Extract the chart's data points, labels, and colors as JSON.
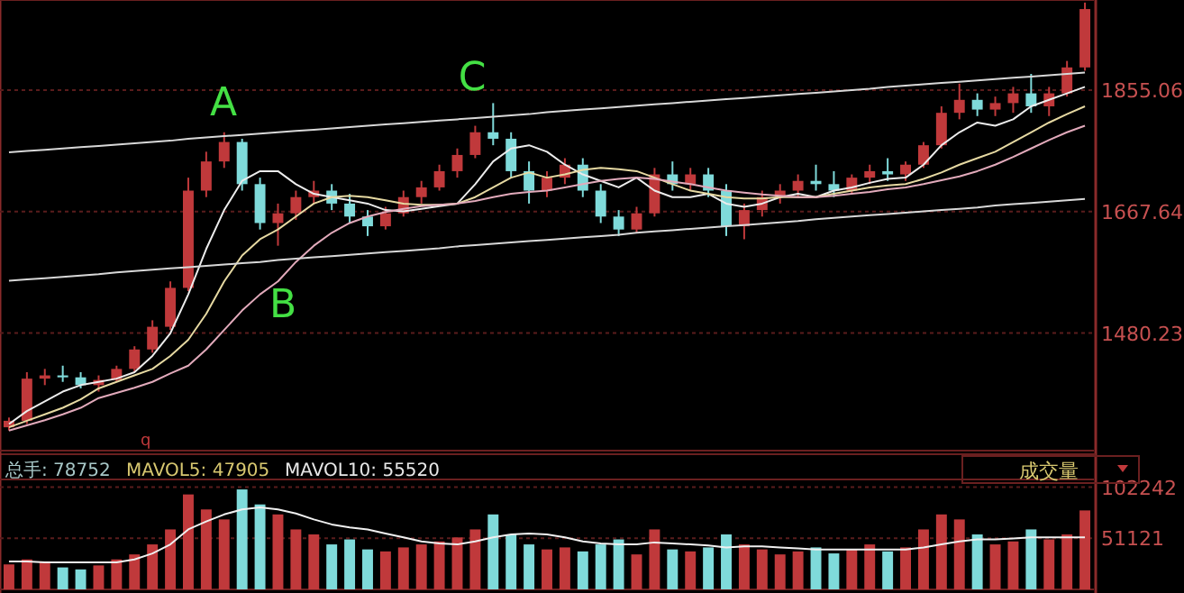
{
  "chart_data": [
    {
      "type": "candlestick",
      "categories": [
        null,
        null,
        null,
        null,
        null,
        null,
        null,
        null,
        null,
        null,
        null,
        null,
        null,
        null,
        null,
        null,
        null,
        null,
        null,
        null,
        null,
        null,
        null,
        null,
        null,
        null,
        null,
        null,
        null,
        null,
        null,
        null,
        null,
        null,
        null,
        null,
        null,
        null,
        null,
        null,
        null,
        null,
        null,
        null,
        null,
        null,
        null,
        null,
        null,
        null,
        null,
        null,
        null,
        null,
        null,
        null,
        null,
        null,
        null,
        null,
        null
      ],
      "ohlc": [
        [
          1335,
          1350,
          1330,
          1345
        ],
        [
          1345,
          1420,
          1340,
          1410
        ],
        [
          1410,
          1425,
          1400,
          1415
        ],
        [
          1415,
          1430,
          1405,
          1412
        ],
        [
          1412,
          1420,
          1395,
          1400
        ],
        [
          1400,
          1415,
          1390,
          1408
        ],
        [
          1408,
          1430,
          1405,
          1425
        ],
        [
          1425,
          1460,
          1420,
          1455
        ],
        [
          1455,
          1500,
          1450,
          1490
        ],
        [
          1490,
          1560,
          1485,
          1550
        ],
        [
          1550,
          1720,
          1545,
          1700
        ],
        [
          1700,
          1760,
          1690,
          1745
        ],
        [
          1745,
          1790,
          1735,
          1775
        ],
        [
          1775,
          1780,
          1700,
          1710
        ],
        [
          1710,
          1720,
          1640,
          1650
        ],
        [
          1650,
          1680,
          1615,
          1665
        ],
        [
          1665,
          1700,
          1655,
          1690
        ],
        [
          1690,
          1715,
          1680,
          1700
        ],
        [
          1700,
          1710,
          1670,
          1680
        ],
        [
          1680,
          1695,
          1650,
          1660
        ],
        [
          1660,
          1670,
          1630,
          1645
        ],
        [
          1645,
          1675,
          1640,
          1665
        ],
        [
          1665,
          1700,
          1660,
          1690
        ],
        [
          1690,
          1715,
          1680,
          1705
        ],
        [
          1705,
          1740,
          1700,
          1730
        ],
        [
          1730,
          1765,
          1720,
          1755
        ],
        [
          1755,
          1800,
          1750,
          1790
        ],
        [
          1790,
          1835,
          1770,
          1780
        ],
        [
          1780,
          1790,
          1720,
          1730
        ],
        [
          1730,
          1745,
          1680,
          1700
        ],
        [
          1700,
          1730,
          1690,
          1720
        ],
        [
          1720,
          1750,
          1710,
          1740
        ],
        [
          1740,
          1750,
          1690,
          1700
        ],
        [
          1700,
          1710,
          1650,
          1660
        ],
        [
          1660,
          1670,
          1630,
          1640
        ],
        [
          1640,
          1675,
          1635,
          1665
        ],
        [
          1665,
          1735,
          1660,
          1725
        ],
        [
          1725,
          1745,
          1700,
          1710
        ],
        [
          1710,
          1735,
          1700,
          1725
        ],
        [
          1725,
          1735,
          1690,
          1700
        ],
        [
          1700,
          1710,
          1630,
          1645
        ],
        [
          1645,
          1680,
          1625,
          1670
        ],
        [
          1670,
          1700,
          1660,
          1690
        ],
        [
          1690,
          1710,
          1680,
          1700
        ],
        [
          1700,
          1725,
          1690,
          1715
        ],
        [
          1715,
          1740,
          1700,
          1710
        ],
        [
          1710,
          1730,
          1690,
          1700
        ],
        [
          1700,
          1725,
          1695,
          1720
        ],
        [
          1720,
          1740,
          1710,
          1730
        ],
        [
          1730,
          1750,
          1715,
          1725
        ],
        [
          1725,
          1745,
          1715,
          1740
        ],
        [
          1740,
          1775,
          1735,
          1770
        ],
        [
          1770,
          1830,
          1765,
          1820
        ],
        [
          1820,
          1865,
          1810,
          1840
        ],
        [
          1840,
          1850,
          1815,
          1825
        ],
        [
          1825,
          1845,
          1815,
          1835
        ],
        [
          1835,
          1860,
          1820,
          1850
        ],
        [
          1850,
          1880,
          1820,
          1830
        ],
        [
          1830,
          1860,
          1815,
          1850
        ],
        [
          1850,
          1900,
          1845,
          1890
        ],
        [
          1890,
          1990,
          1885,
          1980
        ]
      ],
      "series": [
        {
          "type": "line",
          "color": "#ececec",
          "values": [
            1340,
            1360,
            1375,
            1390,
            1400,
            1405,
            1410,
            1420,
            1445,
            1480,
            1540,
            1610,
            1670,
            1715,
            1730,
            1730,
            1710,
            1695,
            1690,
            1685,
            1680,
            1670,
            1668,
            1672,
            1676,
            1680,
            1710,
            1745,
            1765,
            1770,
            1760,
            1740,
            1725,
            1715,
            1705,
            1720,
            1700,
            1690,
            1690,
            1695,
            1680,
            1675,
            1680,
            1690,
            1695,
            1690,
            1700,
            1705,
            1712,
            1718,
            1720,
            1740,
            1770,
            1790,
            1805,
            1800,
            1810,
            1830,
            1840,
            1850,
            1860
          ]
        },
        {
          "type": "line",
          "color": "#e6d9a2",
          "values": [
            1335,
            1345,
            1355,
            1365,
            1378,
            1395,
            1405,
            1415,
            1425,
            1445,
            1470,
            1510,
            1560,
            1600,
            1625,
            1640,
            1660,
            1680,
            1690,
            1692,
            1690,
            1685,
            1680,
            1678,
            1678,
            1680,
            1690,
            1705,
            1720,
            1728,
            1720,
            1725,
            1732,
            1735,
            1733,
            1730,
            1720,
            1710,
            1700,
            1695,
            1690,
            1688,
            1688,
            1690,
            1690,
            1690,
            1695,
            1700,
            1705,
            1708,
            1710,
            1718,
            1728,
            1740,
            1750,
            1760,
            1775,
            1790,
            1805,
            1818,
            1830
          ]
        },
        {
          "type": "line",
          "color": "#e2aabb",
          "values": [
            1330,
            1338,
            1346,
            1355,
            1365,
            1380,
            1388,
            1396,
            1405,
            1418,
            1430,
            1455,
            1485,
            1515,
            1540,
            1560,
            1590,
            1615,
            1635,
            1650,
            1660,
            1667,
            1672,
            1676,
            1678,
            1680,
            1684,
            1690,
            1695,
            1698,
            1700,
            1705,
            1710,
            1715,
            1718,
            1720,
            1718,
            1714,
            1710,
            1705,
            1700,
            1697,
            1694,
            1692,
            1690,
            1690,
            1692,
            1695,
            1698,
            1702,
            1705,
            1710,
            1716,
            1722,
            1730,
            1740,
            1752,
            1765,
            1778,
            1790,
            1800
          ]
        },
        {
          "type": "line",
          "color": "#d8d8d8",
          "values": [
            1759,
            1761,
            1763,
            1765,
            1767,
            1769,
            1771,
            1773,
            1775,
            1777,
            1780,
            1782,
            1784,
            1786,
            1788,
            1790,
            1792,
            1794,
            1796,
            1798,
            1800,
            1802,
            1804,
            1806,
            1808,
            1810,
            1812,
            1814,
            1816,
            1818,
            1821,
            1823,
            1825,
            1827,
            1829,
            1831,
            1833,
            1835,
            1837,
            1839,
            1841,
            1843,
            1845,
            1847,
            1849,
            1851,
            1853,
            1855,
            1857,
            1860,
            1862,
            1864,
            1866,
            1868,
            1870,
            1872,
            1874,
            1876,
            1878,
            1880,
            1882
          ]
        },
        {
          "type": "line",
          "color": "#d8d8d8",
          "values": [
            1561,
            1563,
            1565,
            1567,
            1569,
            1571,
            1574,
            1576,
            1578,
            1580,
            1582,
            1584,
            1586,
            1588,
            1590,
            1593,
            1595,
            1597,
            1599,
            1601,
            1603,
            1605,
            1607,
            1609,
            1611,
            1614,
            1616,
            1618,
            1620,
            1622,
            1624,
            1626,
            1628,
            1630,
            1632,
            1635,
            1637,
            1639,
            1641,
            1643,
            1645,
            1647,
            1649,
            1651,
            1653,
            1656,
            1658,
            1660,
            1662,
            1664,
            1666,
            1668,
            1670,
            1672,
            1674,
            1677,
            1679,
            1681,
            1683,
            1685,
            1687
          ]
        }
      ],
      "ylim": [
        1299,
        1994
      ],
      "yticks": [
        1480.23,
        1667.64,
        1855.06
      ],
      "grid": "y",
      "tick_labels": "y",
      "annotations": [
        "A",
        "B",
        "C",
        "q"
      ]
    },
    {
      "type": "bar",
      "categories": [
        null,
        null,
        null,
        null,
        null,
        null,
        null,
        null,
        null,
        null,
        null,
        null,
        null,
        null,
        null,
        null,
        null,
        null,
        null,
        null,
        null,
        null,
        null,
        null,
        null,
        null,
        null,
        null,
        null,
        null,
        null,
        null,
        null,
        null,
        null,
        null,
        null,
        null,
        null,
        null,
        null,
        null,
        null,
        null,
        null,
        null,
        null,
        null,
        null,
        null,
        null,
        null,
        null,
        null,
        null,
        null,
        null,
        null,
        null,
        null,
        null
      ],
      "series": [
        {
          "type": "bar",
          "values": [
            25000,
            30000,
            28000,
            22000,
            20000,
            24000,
            30000,
            35000,
            45000,
            60000,
            95000,
            80000,
            70000,
            100000,
            85000,
            75000,
            60000,
            55000,
            45000,
            50000,
            40000,
            38000,
            42000,
            45000,
            48000,
            52000,
            60000,
            75000,
            55000,
            45000,
            40000,
            42000,
            38000,
            45000,
            50000,
            35000,
            60000,
            40000,
            38000,
            42000,
            55000,
            45000,
            40000,
            35000,
            38000,
            42000,
            36000,
            40000,
            45000,
            38000,
            42000,
            60000,
            75000,
            70000,
            55000,
            45000,
            48000,
            60000,
            50000,
            55000,
            79000
          ],
          "colors": [
            "#c0393b",
            "#c0393b",
            "#c0393b",
            "#7fdada",
            "#7fdada",
            "#c0393b",
            "#c0393b",
            "#c0393b",
            "#c0393b",
            "#c0393b",
            "#c0393b",
            "#c0393b",
            "#c0393b",
            "#7fdada",
            "#7fdada",
            "#c0393b",
            "#c0393b",
            "#c0393b",
            "#7fdada",
            "#7fdada",
            "#7fdada",
            "#c0393b",
            "#c0393b",
            "#c0393b",
            "#c0393b",
            "#c0393b",
            "#c0393b",
            "#7fdada",
            "#7fdada",
            "#7fdada",
            "#c0393b",
            "#c0393b",
            "#7fdada",
            "#7fdada",
            "#7fdada",
            "#c0393b",
            "#c0393b",
            "#7fdada",
            "#c0393b",
            "#7fdada",
            "#7fdada",
            "#c0393b",
            "#c0393b",
            "#c0393b",
            "#c0393b",
            "#7fdada",
            "#7fdada",
            "#c0393b",
            "#c0393b",
            "#7fdada",
            "#c0393b",
            "#c0393b",
            "#c0393b",
            "#c0393b",
            "#7fdada",
            "#c0393b",
            "#c0393b",
            "#7fdada",
            "#c0393b",
            "#c0393b",
            "#c0393b"
          ]
        },
        {
          "type": "line",
          "color": "#f0f0f0",
          "values": [
            28000,
            28000,
            27000,
            27000,
            27000,
            27000,
            27000,
            30000,
            36000,
            45000,
            60000,
            68000,
            75000,
            80000,
            82000,
            80000,
            76000,
            70000,
            65000,
            62000,
            60000,
            56000,
            52000,
            48000,
            46000,
            45000,
            48000,
            52000,
            55000,
            56000,
            55000,
            52000,
            48000,
            46000,
            45000,
            45000,
            47000,
            46000,
            45000,
            44000,
            42000,
            43000,
            43000,
            42000,
            41000,
            40000,
            40000,
            40000,
            40000,
            40000,
            40000,
            42000,
            45000,
            48000,
            50000,
            50000,
            51000,
            52000,
            52000,
            52000,
            52000
          ]
        }
      ],
      "ylim": [
        0,
        110000
      ],
      "yticks": [
        51121,
        102242
      ],
      "grid": "y",
      "tick_labels": "y",
      "annotations": [
        "总手: 78752",
        "MAVOL5: 47905",
        "MAVOL10: 55520",
        "成交量"
      ]
    }
  ]
}
